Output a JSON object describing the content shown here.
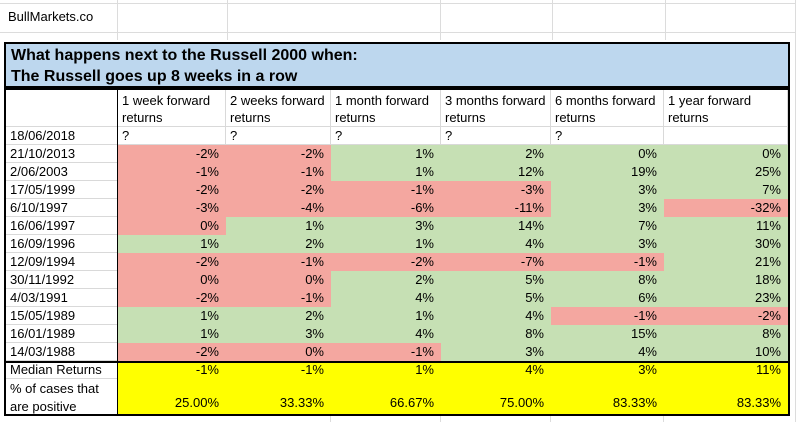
{
  "watermark": "BullMarkets.co",
  "title": {
    "line1": "What happens next to the Russell 2000 when:",
    "line2": "The Russell goes up 8 weeks in a row"
  },
  "colors": {
    "negative_fill": "#F4A7A0",
    "positive_fill": "#C6E0B4",
    "summary_fill": "#FFFF00",
    "title_fill": "#BDD7EE"
  },
  "table": {
    "column_headers": [
      "1 week forward returns",
      "2 weeks forward returns",
      "1 month forward returns",
      "3 months forward returns",
      "6 months forward returns",
      "1 year forward returns"
    ],
    "pending_row": {
      "date": "18/06/2018",
      "values": [
        "?",
        "?",
        "?",
        "?",
        "?",
        ""
      ]
    },
    "rows": [
      {
        "date": "21/10/2013",
        "values": [
          "-2%",
          "-2%",
          "1%",
          "2%",
          "0%",
          "0%"
        ],
        "fills": [
          "neg",
          "neg",
          "pos",
          "pos",
          "pos",
          "pos"
        ]
      },
      {
        "date": "2/06/2003",
        "values": [
          "-1%",
          "-1%",
          "1%",
          "12%",
          "19%",
          "25%"
        ],
        "fills": [
          "neg",
          "neg",
          "pos",
          "pos",
          "pos",
          "pos"
        ]
      },
      {
        "date": "17/05/1999",
        "values": [
          "-2%",
          "-2%",
          "-1%",
          "-3%",
          "3%",
          "7%"
        ],
        "fills": [
          "neg",
          "neg",
          "neg",
          "neg",
          "pos",
          "pos"
        ]
      },
      {
        "date": "6/10/1997",
        "values": [
          "-3%",
          "-4%",
          "-6%",
          "-11%",
          "3%",
          "-32%"
        ],
        "fills": [
          "neg",
          "neg",
          "neg",
          "neg",
          "pos",
          "neg"
        ]
      },
      {
        "date": "16/06/1997",
        "values": [
          "0%",
          "1%",
          "3%",
          "14%",
          "7%",
          "11%"
        ],
        "fills": [
          "neg",
          "pos",
          "pos",
          "pos",
          "pos",
          "pos"
        ]
      },
      {
        "date": "16/09/1996",
        "values": [
          "1%",
          "2%",
          "1%",
          "4%",
          "3%",
          "30%"
        ],
        "fills": [
          "pos",
          "pos",
          "pos",
          "pos",
          "pos",
          "pos"
        ]
      },
      {
        "date": "12/09/1994",
        "values": [
          "-2%",
          "-1%",
          "-2%",
          "-7%",
          "-1%",
          "21%"
        ],
        "fills": [
          "neg",
          "neg",
          "neg",
          "neg",
          "neg",
          "pos"
        ]
      },
      {
        "date": "30/11/1992",
        "values": [
          "0%",
          "0%",
          "2%",
          "5%",
          "8%",
          "18%"
        ],
        "fills": [
          "neg",
          "neg",
          "pos",
          "pos",
          "pos",
          "pos"
        ]
      },
      {
        "date": "4/03/1991",
        "values": [
          "-2%",
          "-1%",
          "4%",
          "5%",
          "6%",
          "23%"
        ],
        "fills": [
          "neg",
          "neg",
          "pos",
          "pos",
          "pos",
          "pos"
        ]
      },
      {
        "date": "15/05/1989",
        "values": [
          "1%",
          "2%",
          "1%",
          "4%",
          "-1%",
          "-2%"
        ],
        "fills": [
          "pos",
          "pos",
          "pos",
          "pos",
          "neg",
          "neg"
        ]
      },
      {
        "date": "16/01/1989",
        "values": [
          "1%",
          "3%",
          "4%",
          "8%",
          "15%",
          "8%"
        ],
        "fills": [
          "pos",
          "pos",
          "pos",
          "pos",
          "pos",
          "pos"
        ]
      },
      {
        "date": "14/03/1988",
        "values": [
          "-2%",
          "0%",
          "-1%",
          "3%",
          "4%",
          "10%"
        ],
        "fills": [
          "neg",
          "neg",
          "neg",
          "pos",
          "pos",
          "pos"
        ]
      }
    ],
    "summary": {
      "median": {
        "label": "Median Returns",
        "values": [
          "-1%",
          "-1%",
          "1%",
          "4%",
          "3%",
          "11%"
        ]
      },
      "percent_positive": {
        "label": "% of cases that are positive",
        "values": [
          "25.00%",
          "33.33%",
          "66.67%",
          "75.00%",
          "83.33%",
          "83.33%"
        ]
      }
    }
  }
}
